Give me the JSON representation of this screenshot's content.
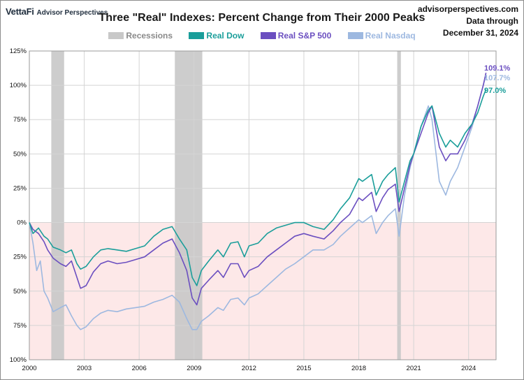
{
  "header": {
    "brand": "VettaFi",
    "brand_sub": "Advisor Perspectives",
    "source_line1": "advisorperspectives.com",
    "source_line2": "Data through",
    "source_line3": "December 31, 2024"
  },
  "chart_data": {
    "type": "line",
    "title": "Three \"Real\" Indexes: Percent Change from Their 2000 Peaks",
    "xlabel": "",
    "ylabel": "",
    "xlim": [
      2000.0,
      2025.5
    ],
    "ylim": [
      -100,
      125
    ],
    "x_ticks": [
      2000,
      2003,
      2006,
      2009,
      2012,
      2015,
      2018,
      2021,
      2024
    ],
    "x_tick_labels": [
      "2000",
      "2003",
      "2006",
      "2009",
      "2012",
      "2015",
      "2018",
      "2021",
      "2024"
    ],
    "y_ticks": [
      -100,
      -75,
      -50,
      -25,
      0,
      25,
      50,
      75,
      100,
      125
    ],
    "y_tick_labels": [
      "100%",
      "75%",
      "50%",
      "25%",
      "0%",
      "25%",
      "50%",
      "75%",
      "100%",
      "125%"
    ],
    "grid": true,
    "negative_region_color": "#fde8e8",
    "legend_position": "top-center",
    "legend": [
      {
        "name": "Recessions",
        "color": "#c8c8c8"
      },
      {
        "name": "Real Dow",
        "color": "#1a9e9a"
      },
      {
        "name": "Real S&P 500",
        "color": "#6b4fc0"
      },
      {
        "name": "Real Nasdaq",
        "color": "#9db8e0"
      }
    ],
    "recessions": [
      {
        "start": 2001.2,
        "end": 2001.9
      },
      {
        "start": 2007.95,
        "end": 2009.45
      },
      {
        "start": 2020.1,
        "end": 2020.3
      }
    ],
    "series": [
      {
        "name": "Real Dow",
        "color": "#1a9e9a",
        "end_label": "97.0%",
        "x": [
          2000.0,
          2000.2,
          2000.5,
          2000.8,
          2001.0,
          2001.3,
          2001.7,
          2002.0,
          2002.3,
          2002.6,
          2002.8,
          2003.1,
          2003.5,
          2003.9,
          2004.3,
          2004.8,
          2005.3,
          2005.8,
          2006.3,
          2006.8,
          2007.3,
          2007.8,
          2008.2,
          2008.6,
          2008.9,
          2009.15,
          2009.4,
          2009.8,
          2010.3,
          2010.6,
          2011.0,
          2011.4,
          2011.75,
          2012.0,
          2012.5,
          2013.0,
          2013.5,
          2014.0,
          2014.5,
          2015.0,
          2015.5,
          2016.1,
          2016.6,
          2017.0,
          2017.5,
          2018.0,
          2018.2,
          2018.7,
          2018.95,
          2019.3,
          2019.6,
          2020.0,
          2020.2,
          2020.5,
          2020.8,
          2021.0,
          2021.4,
          2021.8,
          2022.0,
          2022.4,
          2022.75,
          2023.0,
          2023.4,
          2023.8,
          2024.2,
          2024.5,
          2024.8,
          2024.95
        ],
        "y": [
          0,
          -8,
          -4,
          -10,
          -12,
          -18,
          -20,
          -22,
          -20,
          -30,
          -34,
          -32,
          -25,
          -20,
          -19,
          -20,
          -21,
          -19,
          -17,
          -10,
          -5,
          -3,
          -12,
          -20,
          -40,
          -46,
          -35,
          -28,
          -20,
          -25,
          -15,
          -14,
          -25,
          -17,
          -15,
          -8,
          -4,
          -2,
          0,
          0,
          -3,
          -5,
          2,
          10,
          18,
          32,
          30,
          35,
          20,
          30,
          35,
          40,
          15,
          30,
          45,
          50,
          70,
          82,
          85,
          65,
          55,
          60,
          55,
          65,
          72,
          80,
          92,
          97
        ]
      },
      {
        "name": "Real S&P 500",
        "color": "#6b4fc0",
        "end_label": "109.1%",
        "x": [
          2000.0,
          2000.2,
          2000.5,
          2000.8,
          2001.0,
          2001.3,
          2001.7,
          2002.0,
          2002.3,
          2002.6,
          2002.8,
          2003.1,
          2003.5,
          2003.9,
          2004.3,
          2004.8,
          2005.3,
          2005.8,
          2006.3,
          2006.8,
          2007.3,
          2007.8,
          2008.2,
          2008.6,
          2008.9,
          2009.15,
          2009.4,
          2009.8,
          2010.3,
          2010.6,
          2011.0,
          2011.4,
          2011.75,
          2012.0,
          2012.5,
          2013.0,
          2013.5,
          2014.0,
          2014.5,
          2015.0,
          2015.5,
          2016.1,
          2016.6,
          2017.0,
          2017.5,
          2018.0,
          2018.2,
          2018.7,
          2018.95,
          2019.3,
          2019.6,
          2020.0,
          2020.2,
          2020.5,
          2020.8,
          2021.0,
          2021.4,
          2021.8,
          2022.0,
          2022.4,
          2022.75,
          2023.0,
          2023.4,
          2023.8,
          2024.2,
          2024.5,
          2024.8,
          2024.95
        ],
        "y": [
          0,
          -5,
          -8,
          -14,
          -20,
          -26,
          -30,
          -32,
          -28,
          -40,
          -48,
          -46,
          -36,
          -30,
          -28,
          -30,
          -29,
          -27,
          -25,
          -20,
          -15,
          -12,
          -22,
          -35,
          -55,
          -60,
          -48,
          -42,
          -35,
          -40,
          -30,
          -30,
          -40,
          -35,
          -32,
          -25,
          -20,
          -15,
          -10,
          -8,
          -10,
          -12,
          -6,
          0,
          6,
          18,
          16,
          22,
          8,
          18,
          24,
          28,
          8,
          25,
          42,
          50,
          65,
          80,
          85,
          55,
          45,
          50,
          50,
          60,
          72,
          85,
          100,
          109.1
        ]
      },
      {
        "name": "Real Nasdaq",
        "color": "#9db8e0",
        "end_label": "107.7%",
        "x": [
          2000.0,
          2000.2,
          2000.4,
          2000.6,
          2000.8,
          2001.0,
          2001.3,
          2001.7,
          2002.0,
          2002.3,
          2002.6,
          2002.8,
          2003.1,
          2003.5,
          2003.9,
          2004.3,
          2004.8,
          2005.3,
          2005.8,
          2006.3,
          2006.8,
          2007.3,
          2007.8,
          2008.2,
          2008.6,
          2008.9,
          2009.15,
          2009.4,
          2009.8,
          2010.3,
          2010.6,
          2011.0,
          2011.4,
          2011.75,
          2012.0,
          2012.5,
          2013.0,
          2013.5,
          2014.0,
          2014.5,
          2015.0,
          2015.5,
          2016.1,
          2016.6,
          2017.0,
          2017.5,
          2018.0,
          2018.2,
          2018.7,
          2018.95,
          2019.3,
          2019.6,
          2020.0,
          2020.2,
          2020.5,
          2020.8,
          2021.0,
          2021.4,
          2021.8,
          2022.0,
          2022.4,
          2022.75,
          2023.0,
          2023.4,
          2023.8,
          2024.2,
          2024.5,
          2024.8,
          2024.95
        ],
        "y": [
          0,
          -15,
          -35,
          -28,
          -50,
          -55,
          -65,
          -62,
          -60,
          -68,
          -75,
          -78,
          -76,
          -70,
          -66,
          -64,
          -65,
          -63,
          -62,
          -61,
          -58,
          -56,
          -53,
          -58,
          -70,
          -78,
          -78,
          -72,
          -68,
          -62,
          -64,
          -56,
          -55,
          -60,
          -55,
          -52,
          -46,
          -40,
          -34,
          -30,
          -25,
          -20,
          -20,
          -16,
          -10,
          -4,
          2,
          0,
          5,
          -8,
          0,
          5,
          10,
          -10,
          20,
          40,
          50,
          70,
          85,
          75,
          30,
          20,
          30,
          40,
          55,
          70,
          85,
          100,
          107.7
        ]
      }
    ]
  }
}
